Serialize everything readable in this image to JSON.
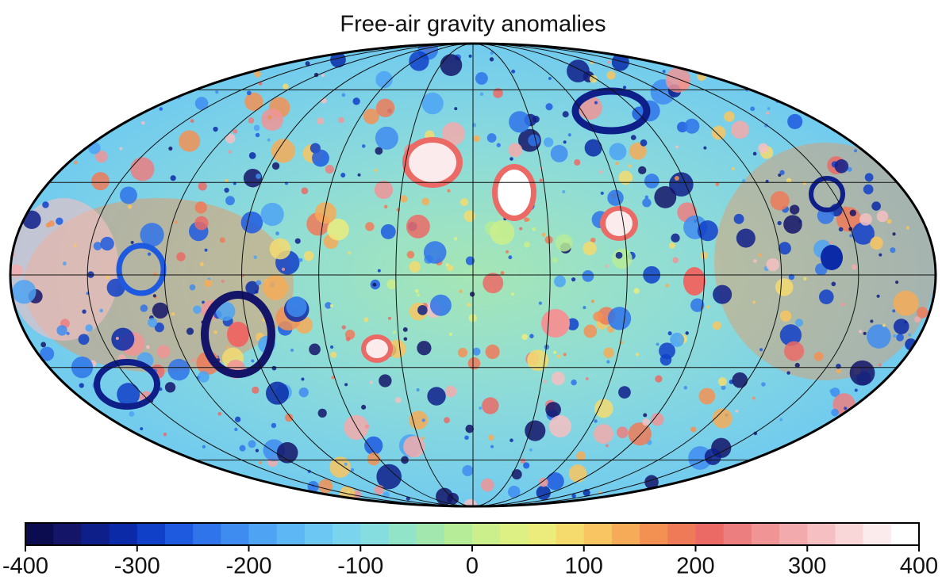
{
  "title": "Free-air gravity anomalies",
  "colorbar": {
    "range": [
      -400,
      400
    ],
    "ticks": [
      -400,
      -300,
      -200,
      -100,
      0,
      100,
      200,
      300,
      400
    ],
    "colors": [
      "#0b0b4f",
      "#141468",
      "#0f1f8a",
      "#0a2aa8",
      "#1040c8",
      "#1e5ae0",
      "#2f74ea",
      "#3f8cf0",
      "#4ea3f3",
      "#5db7f5",
      "#6cc8f3",
      "#7ad4ee",
      "#86dde0",
      "#92e4c8",
      "#a2e8ae",
      "#b6ec98",
      "#cbef8a",
      "#ddf083",
      "#ecec7c",
      "#f5db6e",
      "#f8c562",
      "#f6ab58",
      "#f39153",
      "#ef7a58",
      "#eb6a66",
      "#ec7e80",
      "#f09496",
      "#f3aaac",
      "#f6c0c2",
      "#f9d6d8",
      "#fcebec",
      "#ffffff"
    ]
  }
}
